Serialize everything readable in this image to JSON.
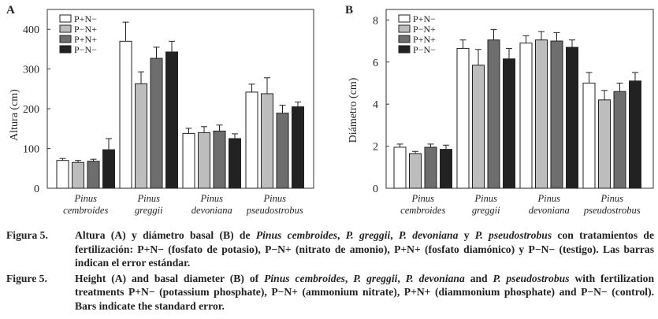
{
  "colors": {
    "P+N−": "#ffffff",
    "P−N+": "#bdbdbd",
    "P+N+": "#6e6e6e",
    "P−N−": "#222222",
    "axis": "#333333"
  },
  "legend": [
    "P+N−",
    "P−N+",
    "P+N+",
    "P−N−"
  ],
  "chart_data": [
    {
      "panel": "A",
      "type": "bar",
      "title": "",
      "ylabel": "Altura (cm)",
      "xlabel": "",
      "ylim": [
        0,
        450
      ],
      "yticks": [
        0,
        100,
        200,
        300,
        400
      ],
      "grid": false,
      "legend_position": "top-left",
      "categories": [
        {
          "line1": "Pinus",
          "line2": "cembroides"
        },
        {
          "line1": "Pinus",
          "line2": "greggii"
        },
        {
          "line1": "Pinus",
          "line2": "devoniana"
        },
        {
          "line1": "Pinus",
          "line2": "pseudostrobus"
        }
      ],
      "series": [
        {
          "name": "P+N−",
          "values": [
            70,
            370,
            138,
            242
          ],
          "errors": [
            5,
            48,
            13,
            20
          ]
        },
        {
          "name": "P−N+",
          "values": [
            65,
            263,
            140,
            238
          ],
          "errors": [
            5,
            30,
            15,
            40
          ]
        },
        {
          "name": "P+N+",
          "values": [
            68,
            327,
            144,
            189
          ],
          "errors": [
            5,
            28,
            15,
            20
          ]
        },
        {
          "name": "P−N−",
          "values": [
            97,
            343,
            125,
            205
          ],
          "errors": [
            28,
            27,
            12,
            12
          ]
        }
      ]
    },
    {
      "panel": "B",
      "type": "bar",
      "title": "",
      "ylabel": "Diámetro (cm)",
      "xlabel": "",
      "ylim": [
        0,
        8.5
      ],
      "yticks": [
        0,
        2,
        4,
        6,
        8
      ],
      "grid": false,
      "legend_position": "top-left",
      "categories": [
        {
          "line1": "Pinus",
          "line2": "cembroides"
        },
        {
          "line1": "Pinus",
          "line2": "greggii"
        },
        {
          "line1": "Pinus",
          "line2": "devoniana"
        },
        {
          "line1": "Pinus",
          "line2": "pseudostrobus"
        }
      ],
      "series": [
        {
          "name": "P+N−",
          "values": [
            1.95,
            6.65,
            6.9,
            5.0
          ],
          "errors": [
            0.15,
            0.4,
            0.35,
            0.5
          ]
        },
        {
          "name": "P−N+",
          "values": [
            1.65,
            5.85,
            7.05,
            4.2
          ],
          "errors": [
            0.1,
            0.75,
            0.4,
            0.45
          ]
        },
        {
          "name": "P+N+",
          "values": [
            1.95,
            7.05,
            7.0,
            4.6
          ],
          "errors": [
            0.15,
            0.5,
            0.4,
            0.4
          ]
        },
        {
          "name": "P−N−",
          "values": [
            1.85,
            6.15,
            6.7,
            5.1
          ],
          "errors": [
            0.2,
            0.5,
            0.35,
            0.4
          ]
        }
      ]
    }
  ],
  "caption": {
    "es": {
      "label": "Figura 5.",
      "t1": "Altura (A) y diámetro basal (B) de ",
      "sp1": "Pinus cembroides",
      "t2": ", ",
      "sp2": "P. greggii",
      "t3": ", ",
      "sp3": "P. devoniana",
      "t4": " y ",
      "sp4": "P. pseudostrobus",
      "t5": " con tratamientos de fertilización: P+N− (fosfato de potasio), P−N+ (nitrato de amonio), P+N+ (fosfato diamónico) y P−N− (testigo). Las barras indican el error estándar."
    },
    "en": {
      "label": "Figure 5.",
      "t1": "Height (A) and basal diameter (B) of ",
      "sp1": "Pinus cembroides",
      "t2": ", ",
      "sp2": "P. greggii",
      "t3": ", ",
      "sp3": "P. devoniana",
      "t4": " and ",
      "sp4": "P. pseudostrobus",
      "t5": " with fertilization treatments P+N− (potassium phosphate), P−N+ (ammonium nitrate), P+N+ (diammonium phosphate) and P−N− (control). Bars indicate the standard error."
    }
  }
}
